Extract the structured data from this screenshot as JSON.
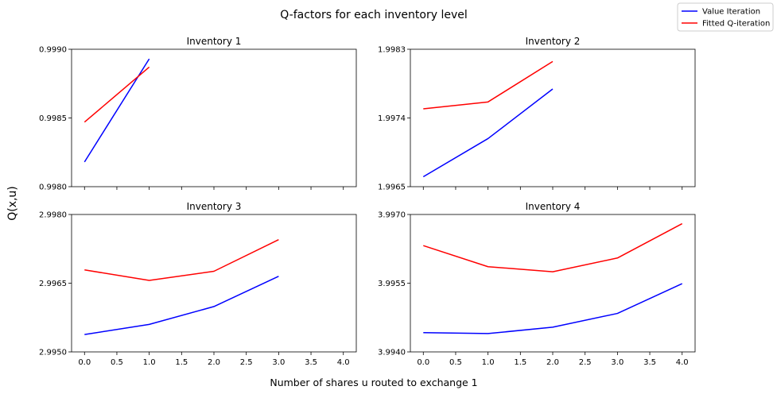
{
  "figure": {
    "title": "Q-factors for each inventory level",
    "xlabel": "Number of shares u routed to exchange 1",
    "ylabel": "Q(x,u)",
    "legend": {
      "placement": "top-right",
      "entries": [
        {
          "label": "Value Iteration",
          "color": "#0000ff"
        },
        {
          "label": "Fitted Q-iteration",
          "color": "#ff0000"
        }
      ]
    }
  },
  "chart_data": [
    {
      "type": "line",
      "title": "Inventory 1",
      "xlim": [
        -0.2,
        4.2
      ],
      "ylim": [
        0.998,
        0.999
      ],
      "xticks": [
        0,
        0.5,
        1,
        1.5,
        2,
        2.5,
        3,
        3.5,
        4
      ],
      "xtick_labels": [],
      "yticks": [
        0.998,
        0.9985,
        0.999
      ],
      "ytick_labels": [
        "0.9980",
        "0.9985",
        "0.9990"
      ],
      "series": [
        {
          "name": "Value Iteration",
          "color": "#0000ff",
          "x": [
            0,
            1
          ],
          "y": [
            0.99818,
            0.99893
          ]
        },
        {
          "name": "Fitted Q-iteration",
          "color": "#ff0000",
          "x": [
            0,
            1
          ],
          "y": [
            0.99847,
            0.99887
          ]
        }
      ]
    },
    {
      "type": "line",
      "title": "Inventory 2",
      "xlim": [
        -0.2,
        4.2
      ],
      "ylim": [
        1.9965,
        1.9983
      ],
      "xticks": [
        0,
        0.5,
        1,
        1.5,
        2,
        2.5,
        3,
        3.5,
        4
      ],
      "xtick_labels": [],
      "yticks": [
        1.9965,
        1.9974,
        1.9983
      ],
      "ytick_labels": [
        "1.9965",
        "1.9974",
        "1.9983"
      ],
      "series": [
        {
          "name": "Value Iteration",
          "color": "#0000ff",
          "x": [
            0,
            1,
            2
          ],
          "y": [
            1.99663,
            1.99713,
            1.99778
          ]
        },
        {
          "name": "Fitted Q-iteration",
          "color": "#ff0000",
          "x": [
            0,
            1,
            2
          ],
          "y": [
            1.99752,
            1.99761,
            1.99814
          ]
        }
      ]
    },
    {
      "type": "line",
      "title": "Inventory 3",
      "xlim": [
        -0.2,
        4.2
      ],
      "ylim": [
        2.995,
        2.998
      ],
      "xticks": [
        0,
        0.5,
        1,
        1.5,
        2,
        2.5,
        3,
        3.5,
        4
      ],
      "xtick_labels": [
        "0.0",
        "0.5",
        "1.0",
        "1.5",
        "2.0",
        "2.5",
        "3.0",
        "3.5",
        "4.0"
      ],
      "yticks": [
        2.995,
        2.9965,
        2.998
      ],
      "ytick_labels": [
        "2.9950",
        "2.9965",
        "2.9980"
      ],
      "series": [
        {
          "name": "Value Iteration",
          "color": "#0000ff",
          "x": [
            0,
            1,
            2,
            3
          ],
          "y": [
            2.99538,
            2.9956,
            2.99599,
            2.99665
          ]
        },
        {
          "name": "Fitted Q-iteration",
          "color": "#ff0000",
          "x": [
            0,
            1,
            2,
            3
          ],
          "y": [
            2.99679,
            2.99656,
            2.99676,
            2.99745
          ]
        }
      ]
    },
    {
      "type": "line",
      "title": "Inventory 4",
      "xlim": [
        -0.2,
        4.2
      ],
      "ylim": [
        3.994,
        3.997
      ],
      "xticks": [
        0,
        0.5,
        1,
        1.5,
        2,
        2.5,
        3,
        3.5,
        4
      ],
      "xtick_labels": [
        "0.0",
        "0.5",
        "1.0",
        "1.5",
        "2.0",
        "2.5",
        "3.0",
        "3.5",
        "4.0"
      ],
      "yticks": [
        3.994,
        3.9955,
        3.997
      ],
      "ytick_labels": [
        "3.9940",
        "3.9955",
        "3.9970"
      ],
      "series": [
        {
          "name": "Value Iteration",
          "color": "#0000ff",
          "x": [
            0,
            1,
            2,
            3,
            4
          ],
          "y": [
            3.99442,
            3.9944,
            3.99454,
            3.99484,
            3.99549
          ]
        },
        {
          "name": "Fitted Q-iteration",
          "color": "#ff0000",
          "x": [
            0,
            1,
            2,
            3,
            4
          ],
          "y": [
            3.99632,
            3.99586,
            3.99575,
            3.99605,
            3.9968
          ]
        }
      ]
    }
  ]
}
